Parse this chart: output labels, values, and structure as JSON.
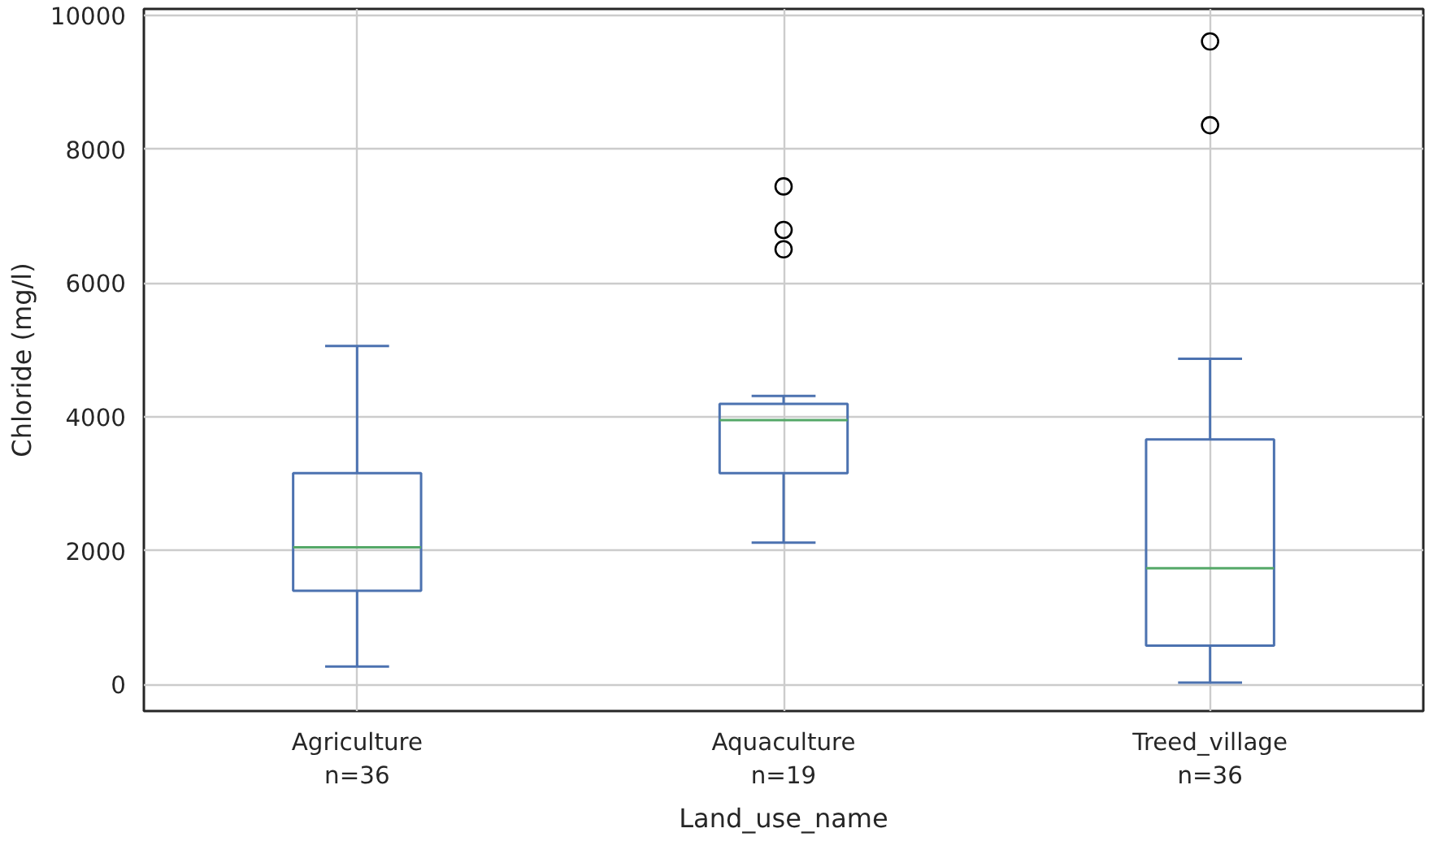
{
  "chart_data": {
    "type": "box",
    "categories": [
      "Agriculture\nn=36",
      "Aquaculture\nn=19",
      "Treed_village\nn=36"
    ],
    "boxes": [
      {
        "low": 265,
        "q1": 1398,
        "median": 2048,
        "q3": 3157,
        "high": 5060
      },
      {
        "low": 2120,
        "q1": 3157,
        "median": 3952,
        "q3": 4193,
        "high": 4313,
        "outliers": [
          7446,
          6795,
          6506
        ]
      },
      {
        "low": 24,
        "q1": 578,
        "median": 1735,
        "q3": 3663,
        "high": 4867,
        "outliers": [
          9614,
          8361
        ]
      }
    ],
    "color": "#4c72b0",
    "xlabel": "Land_use_name",
    "ylabel": "Chloride (mg/l)",
    "ylim": [
      -400,
      10100
    ],
    "yticks": [
      0,
      2000,
      4000,
      6000,
      8000,
      10000
    ],
    "grid": true,
    "marker": "circle"
  }
}
